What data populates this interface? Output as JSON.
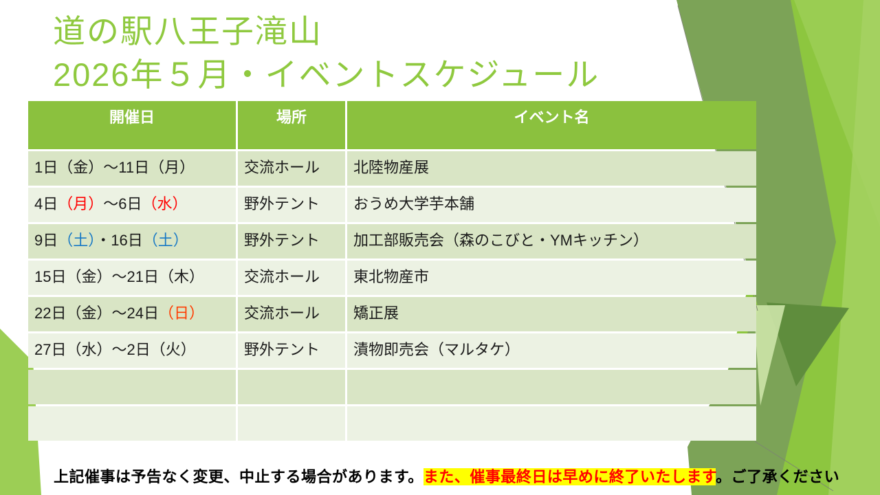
{
  "title": {
    "line1": "道の駅八王子滝山",
    "line2": "2026年５月・イベントスケジュール"
  },
  "table": {
    "headers": [
      "開催日",
      "場所",
      "イベント名"
    ],
    "rows": [
      {
        "date_segments": [
          {
            "text": "1日（金）～11日（月）",
            "color": "#1A1A1A"
          }
        ],
        "place": "交流ホール",
        "event": "北陸物産展"
      },
      {
        "date_segments": [
          {
            "text": "4日",
            "color": "#1A1A1A"
          },
          {
            "text": "（月）",
            "color": "#FF0000"
          },
          {
            "text": "～6日",
            "color": "#1A1A1A"
          },
          {
            "text": "（水）",
            "color": "#FF0000"
          }
        ],
        "place": "野外テント",
        "event": "おうめ大学芋本舗"
      },
      {
        "date_segments": [
          {
            "text": "9日",
            "color": "#1A1A1A"
          },
          {
            "text": "（土）",
            "color": "#1879C5"
          },
          {
            "text": "・16日",
            "color": "#1A1A1A"
          },
          {
            "text": "（土）",
            "color": "#1879C5"
          }
        ],
        "place": "野外テント",
        "event": "加工部販売会（森のこびと・YMキッチン）"
      },
      {
        "date_segments": [
          {
            "text": "15日（金）～21日（木）",
            "color": "#1A1A1A"
          }
        ],
        "place": "交流ホール",
        "event": "東北物産市"
      },
      {
        "date_segments": [
          {
            "text": "22日（金）～24日",
            "color": "#1A1A1A"
          },
          {
            "text": "（日）",
            "color": "#FF3B00"
          }
        ],
        "place": "交流ホール",
        "event": "矯正展"
      },
      {
        "date_segments": [
          {
            "text": "27日（水）～2日（火）",
            "color": "#1A1A1A"
          }
        ],
        "place": "野外テント",
        "event": "漬物即売会（マルタケ）"
      },
      {
        "date_segments": [],
        "place": "",
        "event": ""
      },
      {
        "date_segments": [],
        "place": "",
        "event": ""
      }
    ]
  },
  "footer": {
    "segments": [
      {
        "text": "上記催事は予告なく変更、中止する場合があります。",
        "style": "plain"
      },
      {
        "text": "また、催事最終日は早めに終了いたします",
        "style": "highlight"
      },
      {
        "text": "。ご了承ください",
        "style": "plain"
      }
    ]
  },
  "colors": {
    "title_green": "#8FC93F",
    "header_green": "#8BC13E",
    "row_dark": "#D9E5C5",
    "row_light": "#ECF2E3",
    "text_black": "#1A1A1A",
    "highlight_yellow": "#FFFF00",
    "highlight_red": "#FF0000",
    "weekday_red": "#FF0000",
    "weekday_orange_red": "#FF3B00",
    "weekday_blue": "#1879C5",
    "shape_bright": "#8DC63F",
    "shape_bright_light": "#9ACD52",
    "shape_edge_light": "#A6D264",
    "shape_olive": "#7CA357",
    "shape_dark_tri": "#5F8D3D",
    "shape_light_tri": "#CDE4A9",
    "wedge_green": "#9CCE55",
    "thin_line": "#7D8671"
  }
}
